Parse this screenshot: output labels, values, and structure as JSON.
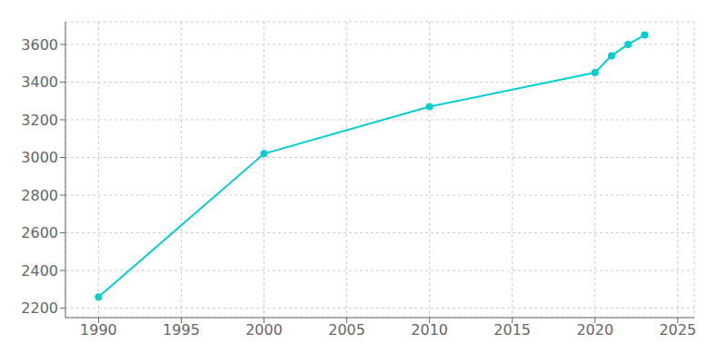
{
  "chart_data": {
    "type": "line",
    "x": [
      1990,
      2000,
      2010,
      2020,
      2021,
      2022,
      2023
    ],
    "values": [
      2260,
      3020,
      3270,
      3450,
      3540,
      3600,
      3650
    ],
    "color": "#00CED1",
    "marker": "circle",
    "xlim": [
      1988,
      2026
    ],
    "ylim": [
      2150,
      3720
    ],
    "xticks": [
      1990,
      1995,
      2000,
      2005,
      2010,
      2015,
      2020,
      2025
    ],
    "yticks": [
      2200,
      2400,
      2600,
      2800,
      3000,
      3200,
      3400,
      3600
    ],
    "grid": true
  }
}
